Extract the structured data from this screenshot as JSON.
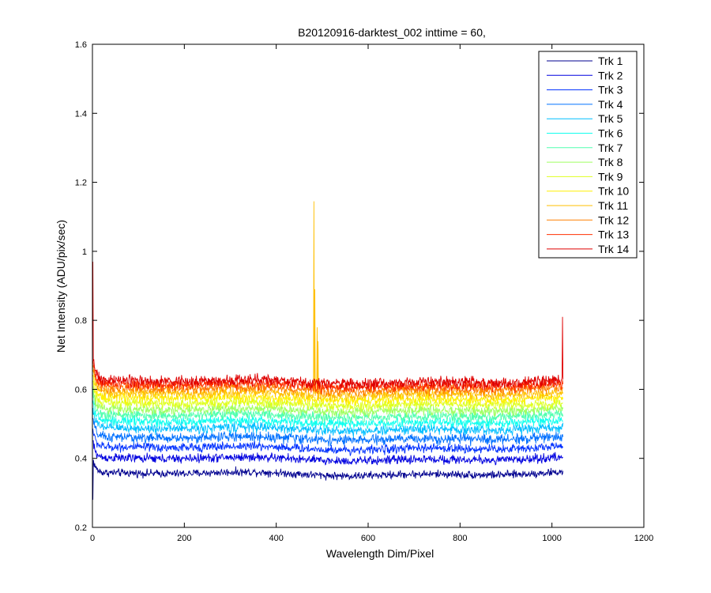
{
  "chart_data": {
    "type": "line",
    "title": "B20120916-darktest_002 inttime = 60,",
    "xlabel": "Wavelength Dim/Pixel",
    "ylabel": "Net Intensity (ADU/pix/sec)",
    "xlim": [
      0,
      1200
    ],
    "ylim": [
      0.2,
      1.6
    ],
    "x_ticks": [
      0,
      200,
      400,
      600,
      800,
      1000,
      1200
    ],
    "y_ticks": [
      0.2,
      0.4,
      0.6,
      0.8,
      1,
      1.2,
      1.4,
      1.6
    ],
    "x_tick_labels": [
      "0",
      "200",
      "400",
      "600",
      "800",
      "1000",
      "1200"
    ],
    "y_tick_labels": [
      "0.2",
      "0.4",
      "0.6",
      "0.8",
      "1",
      "1.2",
      "1.4",
      "1.6"
    ],
    "grid": false,
    "legend_position": "top-right",
    "pixel_range": [
      1,
      1024
    ],
    "series": [
      {
        "name": "Trk 1",
        "color": "#00008f",
        "baseline": 0.355,
        "noise": 0.007
      },
      {
        "name": "Trk 2",
        "color": "#0000df",
        "baseline": 0.398,
        "noise": 0.008
      },
      {
        "name": "Trk 3",
        "color": "#0030ff",
        "baseline": 0.43,
        "noise": 0.008
      },
      {
        "name": "Trk 4",
        "color": "#0070ff",
        "baseline": 0.458,
        "noise": 0.009
      },
      {
        "name": "Trk 5",
        "color": "#00bfff",
        "baseline": 0.485,
        "noise": 0.009
      },
      {
        "name": "Trk 6",
        "color": "#10ffef",
        "baseline": 0.505,
        "noise": 0.009
      },
      {
        "name": "Trk 7",
        "color": "#50ffaf",
        "baseline": 0.523,
        "noise": 0.009
      },
      {
        "name": "Trk 8",
        "color": "#9fff60",
        "baseline": 0.54,
        "noise": 0.009
      },
      {
        "name": "Trk 9",
        "color": "#dfff20",
        "baseline": 0.557,
        "noise": 0.009
      },
      {
        "name": "Trk 10",
        "color": "#ffef00",
        "baseline": 0.573,
        "noise": 0.009
      },
      {
        "name": "Trk 11",
        "color": "#ffbf00",
        "baseline": 0.587,
        "noise": 0.009
      },
      {
        "name": "Trk 12",
        "color": "#ff8000",
        "baseline": 0.6,
        "noise": 0.009
      },
      {
        "name": "Trk 13",
        "color": "#ff3000",
        "baseline": 0.612,
        "noise": 0.01
      },
      {
        "name": "Trk 14",
        "color": "#df0000",
        "baseline": 0.622,
        "noise": 0.01
      }
    ],
    "annotations": [
      {
        "series": "Trk 1",
        "x": 1,
        "y": 0.28,
        "note": "initial dip"
      },
      {
        "series": "Trk 14",
        "x": 1,
        "y": 0.97,
        "note": "initial spike"
      },
      {
        "series": "Trk 11",
        "x": 482,
        "y": 1.145,
        "note": "spike"
      },
      {
        "series": "Trk 11",
        "x": 484,
        "y": 0.89,
        "note": "spike"
      },
      {
        "series": "Trk 11",
        "x": 489,
        "y": 0.78,
        "note": "spike"
      },
      {
        "series": "Trk 11",
        "x": 491,
        "y": 0.74,
        "note": "spike"
      },
      {
        "series": "Trk 14",
        "x": 1023,
        "y": 0.81,
        "note": "end spike"
      }
    ]
  }
}
